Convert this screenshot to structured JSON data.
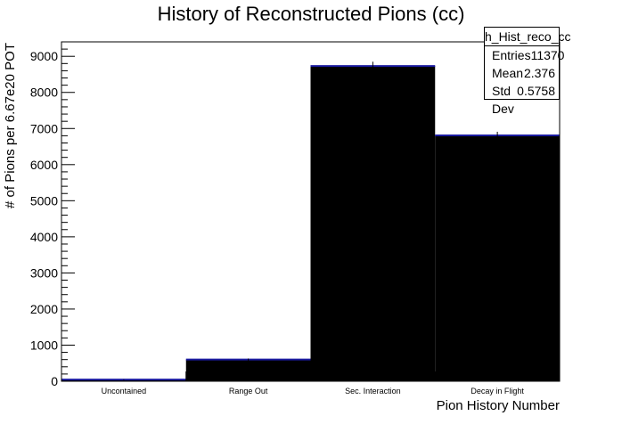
{
  "chart_data": {
    "type": "bar",
    "title": "History of Reconstructed Pions (cc)",
    "xlabel": "Pion History Number",
    "ylabel": "# of Pions per 6.67e20 POT",
    "categories": [
      "Uncontained",
      "Range Out",
      "Sec. Interaction",
      "Decay in Flight"
    ],
    "series": [
      {
        "values": [
          45,
          600,
          8730,
          6810
        ]
      }
    ],
    "errors": [
      10,
      30,
      120,
      100
    ],
    "ylim": [
      0,
      9400
    ],
    "yticks": [
      "0",
      "1000",
      "2000",
      "3000",
      "4000",
      "5000",
      "6000",
      "7000",
      "8000",
      "9000"
    ],
    "grid": false,
    "bar_color": "#000000",
    "edge_color": "#1a1aa0"
  },
  "stats": {
    "title": "h_Hist_reco_cc",
    "rows": [
      {
        "label": "Entries",
        "value": "11370"
      },
      {
        "label": "Mean",
        "value": "2.376"
      },
      {
        "label": "Std Dev",
        "value": "0.5758"
      }
    ]
  }
}
